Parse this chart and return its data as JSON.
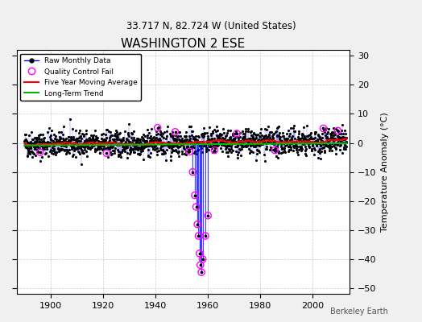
{
  "title": "WASHINGTON 2 ESE",
  "subtitle": "33.717 N, 82.724 W (United States)",
  "ylabel": "Temperature Anomaly (°C)",
  "watermark": "Berkeley Earth",
  "xlim": [
    1887,
    2014
  ],
  "ylim": [
    -52,
    32
  ],
  "yticks": [
    -50,
    -40,
    -30,
    -20,
    -10,
    0,
    10,
    20,
    30
  ],
  "xticks": [
    1900,
    1920,
    1940,
    1960,
    1980,
    2000
  ],
  "bg_color": "#f0f0f0",
  "plot_bg_color": "#ffffff",
  "raw_color": "#0000ff",
  "dot_color": "#000000",
  "qc_color": "#ff00ff",
  "moving_avg_color": "#ff0000",
  "trend_color": "#00bb00",
  "seed": 42,
  "start_year": 1890,
  "end_year": 2012,
  "anomaly_std": 2.2,
  "trend_slope": 0.008,
  "moving_avg_months": 60,
  "qc_fail_data": [
    [
      1896.0,
      -3.2
    ],
    [
      1921.3,
      -3.5
    ],
    [
      1940.8,
      5.2
    ],
    [
      1947.5,
      3.8
    ],
    [
      1953.0,
      -3.0
    ],
    [
      1954.2,
      -10.0
    ],
    [
      1955.0,
      -18.0
    ],
    [
      1955.5,
      -22.0
    ],
    [
      1956.0,
      -28.0
    ],
    [
      1956.4,
      -32.0
    ],
    [
      1956.8,
      -38.0
    ],
    [
      1957.1,
      -42.0
    ],
    [
      1957.5,
      -44.5
    ],
    [
      1958.0,
      -40.0
    ],
    [
      1959.0,
      -32.0
    ],
    [
      1960.0,
      -25.0
    ],
    [
      1962.5,
      -2.5
    ],
    [
      1971.0,
      3.2
    ],
    [
      1985.5,
      -2.5
    ],
    [
      2004.0,
      5.0
    ],
    [
      2009.5,
      4.2
    ]
  ],
  "spike_years": [
    1954.2,
    1955.0,
    1955.5,
    1956.0,
    1956.4,
    1956.8,
    1957.1,
    1957.5,
    1958.0,
    1959.0,
    1960.0
  ],
  "spike_values": [
    -10.0,
    -18.0,
    -22.0,
    -28.0,
    -32.0,
    -38.0,
    -42.0,
    -44.5,
    -40.0,
    -32.0,
    -25.0
  ]
}
